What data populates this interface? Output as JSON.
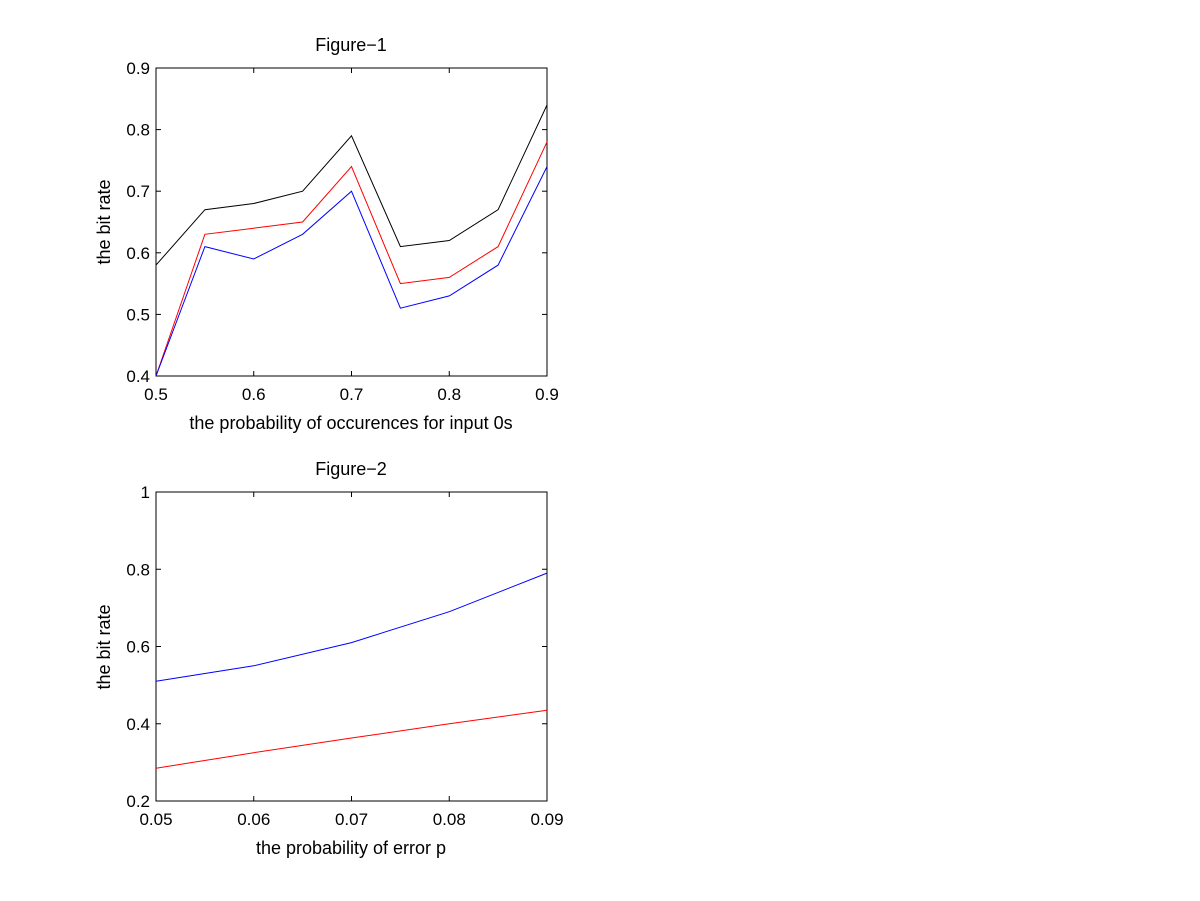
{
  "chart_data": [
    {
      "type": "line",
      "title": "Figure−1",
      "xlabel": "the probability of occurences for input 0s",
      "ylabel": "the bit rate",
      "xlim": [
        0.5,
        0.9
      ],
      "ylim": [
        0.4,
        0.9
      ],
      "xticks": [
        0.5,
        0.6,
        0.7,
        0.8,
        0.9
      ],
      "xtick_labels": [
        "0.5",
        "0.6",
        "0.7",
        "0.8",
        "0.9"
      ],
      "yticks": [
        0.4,
        0.5,
        0.6,
        0.7,
        0.8,
        0.9
      ],
      "ytick_labels": [
        "0.4",
        "0.5",
        "0.6",
        "0.7",
        "0.8",
        "0.9"
      ],
      "grid": false,
      "x": [
        0.5,
        0.55,
        0.6,
        0.65,
        0.7,
        0.75,
        0.8,
        0.85,
        0.9
      ],
      "series": [
        {
          "color": "#000000",
          "values": [
            0.58,
            0.67,
            0.68,
            0.7,
            0.79,
            0.61,
            0.62,
            0.67,
            0.84
          ]
        },
        {
          "color": "#ff0000",
          "values": [
            0.4,
            0.63,
            0.64,
            0.65,
            0.74,
            0.55,
            0.56,
            0.61,
            0.78
          ]
        },
        {
          "color": "#0000ff",
          "values": [
            0.4,
            0.61,
            0.59,
            0.63,
            0.7,
            0.51,
            0.53,
            0.58,
            0.74
          ]
        }
      ]
    },
    {
      "type": "line",
      "title": "Figure−2",
      "xlabel": "the probability of error p",
      "ylabel": "the bit rate",
      "xlim": [
        0.05,
        0.09
      ],
      "ylim": [
        0.2,
        1.0
      ],
      "xticks": [
        0.05,
        0.06,
        0.07,
        0.08,
        0.09
      ],
      "xtick_labels": [
        "0.05",
        "0.06",
        "0.07",
        "0.08",
        "0.09"
      ],
      "yticks": [
        0.2,
        0.4,
        0.6,
        0.8,
        1.0
      ],
      "ytick_labels": [
        "0.2",
        "0.4",
        "0.6",
        "0.8",
        "1"
      ],
      "grid": false,
      "x": [
        0.05,
        0.06,
        0.07,
        0.08,
        0.09
      ],
      "series": [
        {
          "color": "#0000ff",
          "values": [
            0.51,
            0.55,
            0.61,
            0.69,
            0.79
          ]
        },
        {
          "color": "#ff0000",
          "values": [
            0.285,
            0.325,
            0.363,
            0.4,
            0.435
          ]
        }
      ]
    }
  ]
}
